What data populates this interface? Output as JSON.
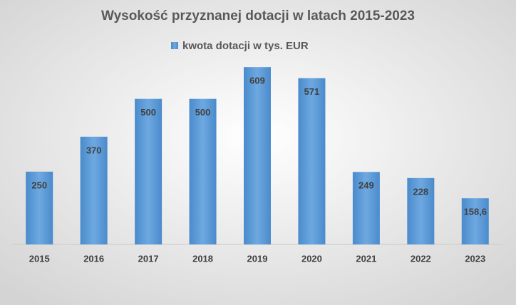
{
  "chart_data": {
    "type": "bar",
    "title": "Wysokość przyznanej dotacji w latach 2015-2023",
    "categories": [
      "2015",
      "2016",
      "2017",
      "2018",
      "2019",
      "2020",
      "2021",
      "2022",
      "2023"
    ],
    "series": [
      {
        "name": "kwota dotacji w tys. EUR",
        "color": "#5b9bd5",
        "values": [
          250,
          370,
          500,
          500,
          609,
          571,
          249,
          228,
          158.6
        ],
        "value_labels": [
          "250",
          "370",
          "500",
          "500",
          "609",
          "571",
          "249",
          "228",
          "158,6"
        ]
      }
    ],
    "ylim": [
      0,
      700
    ]
  }
}
